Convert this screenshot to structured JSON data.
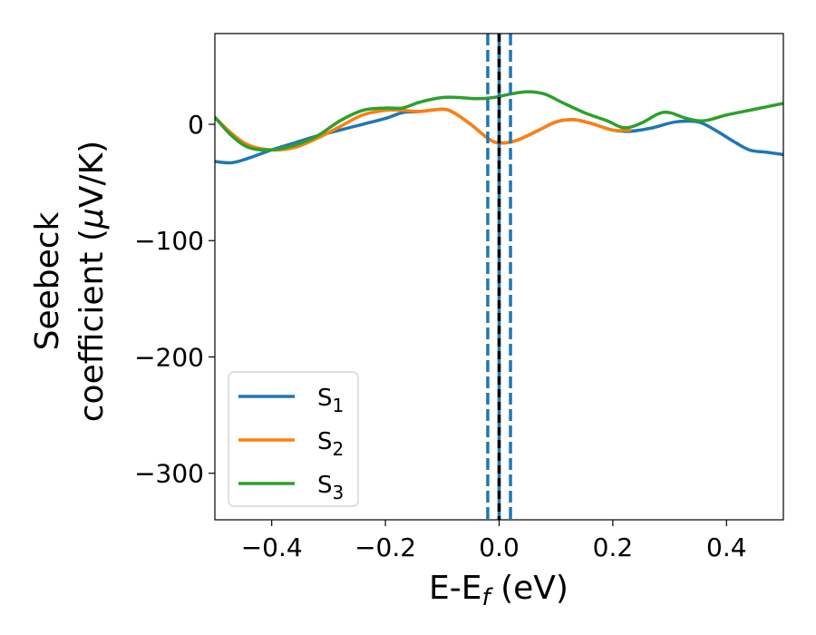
{
  "chart_data": {
    "type": "line",
    "xlabel": {
      "main": "E-E",
      "sub": "f",
      "tail": " (eV)"
    },
    "ylabel": {
      "line1": "Seebeck",
      "line2_pre": "coefficient  (",
      "line2_mu": "μ",
      "line2_post": "V/K)"
    },
    "xlim": [
      -0.5,
      0.5
    ],
    "ylim": [
      -340,
      78
    ],
    "grid": false,
    "legend_position": "lower-left",
    "x_ticks": [
      {
        "value": -0.4,
        "label": "−0.4"
      },
      {
        "value": -0.2,
        "label": "−0.2"
      },
      {
        "value": 0.0,
        "label": "0.0"
      },
      {
        "value": 0.2,
        "label": "0.2"
      },
      {
        "value": 0.4,
        "label": "0.4"
      }
    ],
    "y_ticks": [
      {
        "value": 0,
        "label": "0"
      },
      {
        "value": -100,
        "label": "−100"
      },
      {
        "value": -200,
        "label": "−200"
      },
      {
        "value": -300,
        "label": "−300"
      }
    ],
    "vlines": [
      {
        "x": -0.02,
        "color": "#1f77b4",
        "style": "dashed"
      },
      {
        "x": 0.0,
        "color": "#1f77b4",
        "style": "solid"
      },
      {
        "x": 0.0,
        "color": "#000000",
        "style": "dashed"
      },
      {
        "x": 0.02,
        "color": "#1f77b4",
        "style": "dashed"
      }
    ],
    "series": [
      {
        "name": "S",
        "sub": "1",
        "color": "#1f77b4",
        "x": [
          -0.5,
          -0.47,
          -0.44,
          -0.4,
          -0.36,
          -0.32,
          -0.28,
          -0.24,
          -0.2,
          -0.17,
          -0.14,
          -0.1,
          -0.08,
          -0.05,
          -0.02,
          0.0,
          0.03,
          0.07,
          0.1,
          0.13,
          0.16,
          0.2,
          0.23,
          0.27,
          0.31,
          0.35,
          0.38,
          0.41,
          0.44,
          0.47,
          0.5
        ],
        "y": [
          -32,
          -33,
          -29,
          -22,
          -16,
          -10,
          -5,
          0,
          5,
          10,
          11,
          13,
          10,
          0,
          -12,
          -16,
          -14,
          -5,
          2,
          4,
          1,
          -5,
          -6,
          -3,
          2,
          2,
          -5,
          -14,
          -22,
          -24,
          -26
        ]
      },
      {
        "name": "S",
        "sub": "2",
        "color": "#ff7f0e",
        "x": [
          -0.5,
          -0.47,
          -0.44,
          -0.4,
          -0.36,
          -0.32,
          -0.28,
          -0.24,
          -0.2,
          -0.17,
          -0.14,
          -0.1,
          -0.08,
          -0.05,
          -0.02,
          0.0,
          0.03,
          0.07,
          0.1,
          0.13,
          0.16,
          0.2,
          0.23
        ],
        "y": [
          6,
          -8,
          -18,
          -22,
          -20,
          -12,
          -2,
          8,
          12,
          12,
          11,
          13,
          10,
          0,
          -12,
          -16,
          -14,
          -5,
          2,
          4,
          1,
          -5,
          -5
        ]
      },
      {
        "name": "S",
        "sub": "3",
        "color": "#2ca02c",
        "x": [
          -0.5,
          -0.47,
          -0.44,
          -0.4,
          -0.36,
          -0.32,
          -0.28,
          -0.24,
          -0.2,
          -0.17,
          -0.14,
          -0.1,
          -0.07,
          -0.04,
          -0.01,
          0.02,
          0.05,
          0.08,
          0.11,
          0.15,
          0.19,
          0.22,
          0.25,
          0.28,
          0.3,
          0.33,
          0.36,
          0.4,
          0.44,
          0.47,
          0.5
        ],
        "y": [
          6,
          -10,
          -20,
          -22,
          -18,
          -10,
          3,
          12,
          14,
          14,
          19,
          23,
          23,
          22,
          23,
          26,
          28,
          26,
          19,
          10,
          3,
          -3,
          1,
          9,
          10,
          5,
          3,
          8,
          12,
          15,
          18
        ]
      }
    ]
  }
}
